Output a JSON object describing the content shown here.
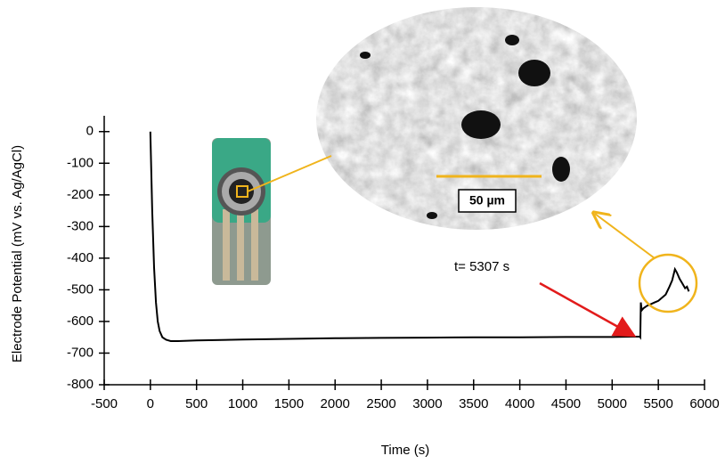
{
  "chart_data": {
    "type": "line",
    "xlabel": "Time (s)",
    "ylabel": "Electrode Potential (mV vs. Ag/AgCl)",
    "xlim": [
      -500,
      6000
    ],
    "xticks": [
      -500,
      0,
      500,
      1000,
      1500,
      2000,
      2500,
      3000,
      3500,
      4000,
      4500,
      5000,
      5500,
      6000
    ],
    "ylim": [
      -800,
      50
    ],
    "yticks": [
      -800,
      -700,
      -600,
      -500,
      -400,
      -300,
      -200,
      -100,
      0
    ],
    "series": [
      {
        "color": "#000000",
        "x": [
          0,
          20,
          40,
          60,
          80,
          100,
          130,
          170,
          220,
          300,
          500,
          1000,
          1500,
          2000,
          2500,
          3000,
          3500,
          4000,
          4500,
          5000,
          5200,
          5300,
          5305,
          5310,
          5320,
          5340,
          5380,
          5420,
          5460,
          5500,
          5540,
          5580,
          5620,
          5650,
          5680,
          5700,
          5730,
          5760,
          5790,
          5810,
          5830
        ],
        "y": [
          0,
          -250,
          -430,
          -540,
          -600,
          -630,
          -650,
          -658,
          -662,
          -662,
          -660,
          -657,
          -655,
          -653,
          -652,
          -651,
          -650,
          -650,
          -649,
          -649,
          -648,
          -648,
          -650,
          -540,
          -565,
          -558,
          -550,
          -545,
          -540,
          -535,
          -525,
          -515,
          -490,
          -470,
          -435,
          -445,
          -465,
          -480,
          -495,
          -490,
          -505
        ]
      }
    ],
    "annotations": [
      "t= 5307 s",
      "50 µm"
    ]
  }
}
